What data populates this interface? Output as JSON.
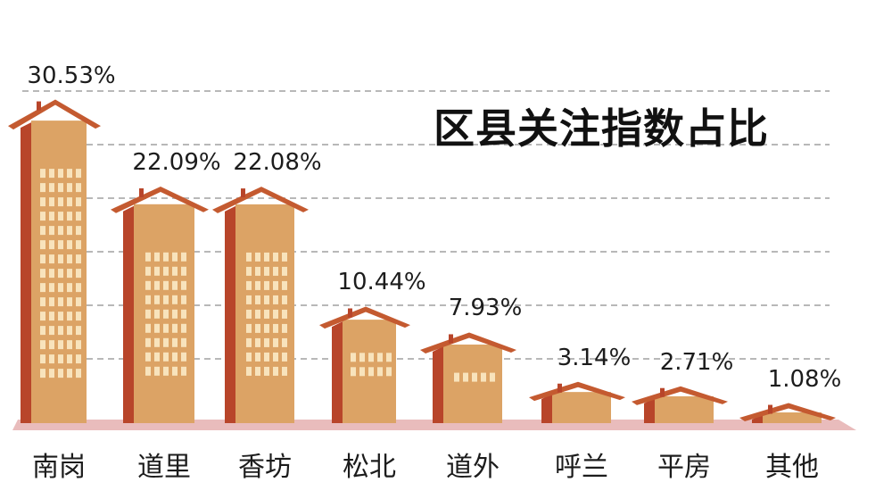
{
  "chart_data": {
    "type": "bar",
    "title": "区县关注指数占比",
    "categories": [
      "南岗",
      "道里",
      "香坊",
      "松北",
      "道外",
      "呼兰",
      "平房",
      "其他"
    ],
    "values": [
      30.53,
      22.09,
      22.08,
      10.44,
      7.93,
      3.14,
      2.71,
      1.08
    ],
    "value_labels": [
      "30.53%",
      "22.09%",
      "22.08%",
      "10.44%",
      "7.93%",
      "3.14%",
      "2.71%",
      "1.08%"
    ],
    "xlabel": "",
    "ylabel": "",
    "ylim": [
      0,
      35
    ],
    "grid": true,
    "colors": {
      "wall": "#dca365",
      "side": "#b8452a",
      "roof": "#c45a30",
      "window": "#f8e3bc",
      "grid": "#b8b8b8",
      "ground": "#e9bcbc"
    }
  }
}
